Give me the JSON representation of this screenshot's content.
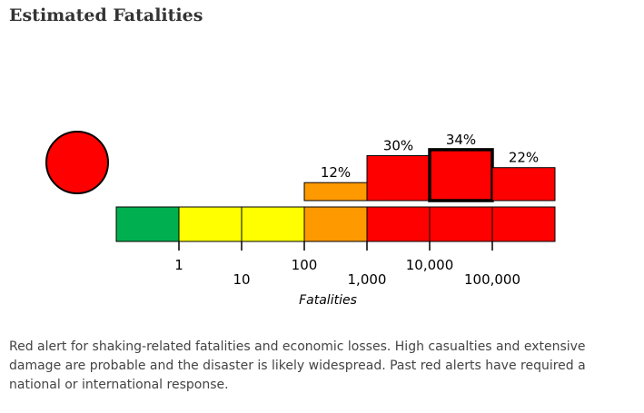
{
  "header": {
    "title": "Estimated Fatalities"
  },
  "alert": {
    "level": "red",
    "color": "#ff0000"
  },
  "chart_data": {
    "type": "bar",
    "xlabel": "Fatalities",
    "scale": "log",
    "scale_tick_labels": [
      "1",
      "10",
      "100",
      "1,000",
      "10,000",
      "100,000"
    ],
    "scale_colors": [
      "#00b050",
      "#ffff00",
      "#ffff00",
      "#ff9900",
      "#ff0000",
      "#ff0000",
      "#ff0000"
    ],
    "categories": [
      "0",
      "1-10",
      "10-100",
      "100-1,000",
      "1,000-10,000",
      "10,000-100,000",
      "100,000+"
    ],
    "values": [
      0,
      0,
      0,
      12,
      30,
      34,
      22
    ],
    "value_labels": [
      "",
      "",
      "",
      "12%",
      "30%",
      "34%",
      "22%"
    ],
    "bar_colors": [
      "#00b050",
      "#ffff00",
      "#ffff00",
      "#ff9900",
      "#ff0000",
      "#ff0000",
      "#ff0000"
    ],
    "highlighted_index": 5
  },
  "description": "Red alert for shaking-related fatalities and economic losses. High casualties and extensive damage are probable and the disaster is likely widespread. Past red alerts have required a national or international response."
}
